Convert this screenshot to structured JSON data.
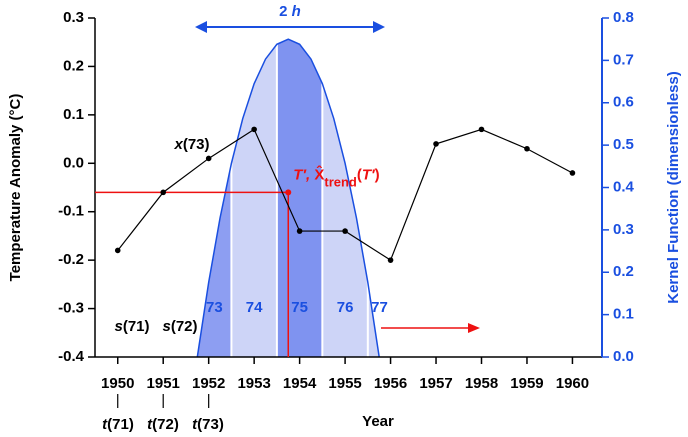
{
  "chart_data": {
    "type": "line",
    "xlabel": "Year",
    "ylabel": "Temperature Anomaly (°C)",
    "y2label": "Kernel Function (dimensionless)",
    "xlim": [
      1949.5,
      1960.65
    ],
    "xticks": [
      1950,
      1951,
      1952,
      1953,
      1954,
      1955,
      1956,
      1957,
      1958,
      1959,
      1960
    ],
    "ylim": [
      -0.4,
      0.3
    ],
    "yticks": [
      -0.4,
      -0.3,
      -0.2,
      -0.1,
      {
        "value": 0,
        "label": "0.0"
      },
      0.1,
      0.2,
      0.3
    ],
    "y2lim": [
      0,
      0.8
    ],
    "y2ticks": [
      {
        "value": 0,
        "label": "0.0"
      },
      0.1,
      0.2,
      0.3,
      0.4,
      0.5,
      0.6,
      0.7,
      0.8
    ],
    "axis_color": "#000000",
    "y2_axis_color": "#1a4fe0",
    "series": [
      {
        "color": "#000000",
        "x": [
          1950,
          1951,
          1952,
          1953,
          1954,
          1955,
          1956,
          1957,
          1958,
          1959,
          1960
        ],
        "values": [
          -0.18,
          -0.06,
          0.01,
          0.07,
          -0.14,
          -0.14,
          -0.2,
          0.04,
          0.07,
          0.03,
          -0.02
        ]
      },
      {
        "type": "area",
        "axis": "y2",
        "color": "#1a4fe0",
        "x": [
          1951.75,
          1952,
          1952.25,
          1952.5,
          1952.75,
          1953,
          1953.25,
          1953.5,
          1953.75,
          1954,
          1954.25,
          1954.5,
          1954.75,
          1955,
          1955.25,
          1955.5,
          1955.75
        ],
        "values": [
          0,
          0.176,
          0.328,
          0.457,
          0.563,
          0.645,
          0.703,
          0.738,
          0.75,
          0.738,
          0.703,
          0.645,
          0.563,
          0.457,
          0.328,
          0.176,
          0
        ]
      }
    ],
    "bands": {
      "labels": [
        "73",
        "74",
        "75",
        "76",
        "77"
      ],
      "edges": [
        1951.75,
        1952.5,
        1953.5,
        1954.5,
        1955.5,
        1955.75
      ],
      "colors": [
        "#8d9ef2",
        "#cdd4f7",
        "#7f93f0",
        "#cdd4f7",
        "#cdd4f7"
      ],
      "label_color": "#1a4fe0"
    },
    "highlight": {
      "x": 1953.75,
      "y": -0.06,
      "color": "#ee1111",
      "parts": [
        "T′, ",
        "X̂",
        "trend",
        "(",
        "T′",
        ")"
      ]
    },
    "width_label": [
      "2 ",
      "h"
    ],
    "annotations": [
      {
        "parts": [
          "x",
          "(73)"
        ]
      },
      {
        "parts": [
          "s",
          "(71)"
        ]
      },
      {
        "parts": [
          "s",
          "(72)"
        ]
      },
      {
        "parts": [
          "t",
          "(71)"
        ]
      },
      {
        "parts": [
          "t",
          "(72)"
        ]
      },
      {
        "parts": [
          "t",
          "(73)"
        ]
      }
    ]
  }
}
